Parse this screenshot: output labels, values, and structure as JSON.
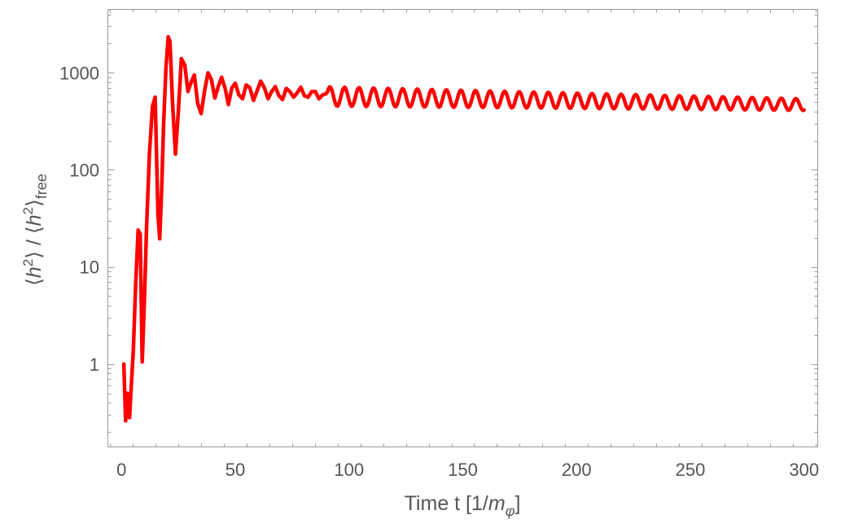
{
  "chart_data": {
    "type": "line",
    "title": "",
    "xlabel": {
      "main": "Time t [1/",
      "math": "m",
      "sub": "φ",
      "close": "]"
    },
    "ylabel": {
      "open1": "⟨",
      "h1": "h",
      "sup1": "2",
      "close1": "⟩ / ⟨",
      "h2": "h",
      "sup2": "2",
      "close2": "⟩",
      "sub": "free"
    },
    "x_scale": "linear",
    "y_scale": "log",
    "xlim": [
      -6,
      306
    ],
    "ylim": [
      0.14,
      4500
    ],
    "x_ticks": [
      0,
      50,
      100,
      150,
      200,
      250,
      300
    ],
    "x_tick_labels": [
      "0",
      "50",
      "100",
      "150",
      "200",
      "250",
      "300"
    ],
    "y_ticks": [
      1,
      10,
      100,
      1000
    ],
    "y_tick_labels": [
      "1",
      "10",
      "100",
      "1000"
    ],
    "grid": false,
    "legend": "none",
    "series": [
      {
        "color": "#ff0000",
        "x": [
          1,
          1.8,
          2.6,
          3.5,
          4.3,
          5.2,
          6.2,
          7.3,
          8.2,
          9.1,
          10.0,
          11.0,
          12.3,
          13.6,
          14.8,
          16.0,
          16.8,
          17.6,
          18.5,
          19.5,
          20.5,
          21.3,
          22.4,
          23.7,
          25.0,
          26.3,
          27.8,
          29.2,
          30.6,
          32.0,
          33.5,
          35.0,
          36.5,
          38.0,
          39.5,
          41.0,
          42.5,
          44.0,
          45.5,
          47.0,
          48.5,
          50.0,
          51.6,
          53.2,
          54.8,
          56.4,
          58.0,
          59.6,
          61.2,
          62.8,
          64.4,
          66.0,
          67.6,
          69.2,
          70.8,
          72.4,
          74.0,
          75.6,
          77.2,
          78.8,
          80.4,
          82.0,
          83.6,
          85.2,
          86.8,
          88.4,
          90.0
        ],
        "y": [
          1.0,
          0.26,
          0.5,
          0.28,
          0.6,
          1.4,
          6.5,
          24,
          22,
          1.05,
          4,
          25,
          150,
          450,
          560,
          35,
          19.5,
          60,
          300,
          1100,
          2350,
          2100,
          500,
          145,
          400,
          1400,
          1200,
          640,
          800,
          950,
          480,
          380,
          650,
          1000,
          850,
          550,
          720,
          900,
          700,
          470,
          700,
          780,
          590,
          540,
          750,
          700,
          520,
          650,
          820,
          700,
          540,
          640,
          720,
          580,
          530,
          690,
          640,
          560,
          620,
          710,
          580,
          560,
          640,
          640,
          540,
          590,
          610
        ],
        "tail": {
          "x_start": 90,
          "x_end": 300,
          "period": 6.4,
          "start_level": 570,
          "end_level": 470,
          "start_amplitude": 0.1,
          "end_amplitude": 0.06
        }
      }
    ]
  }
}
